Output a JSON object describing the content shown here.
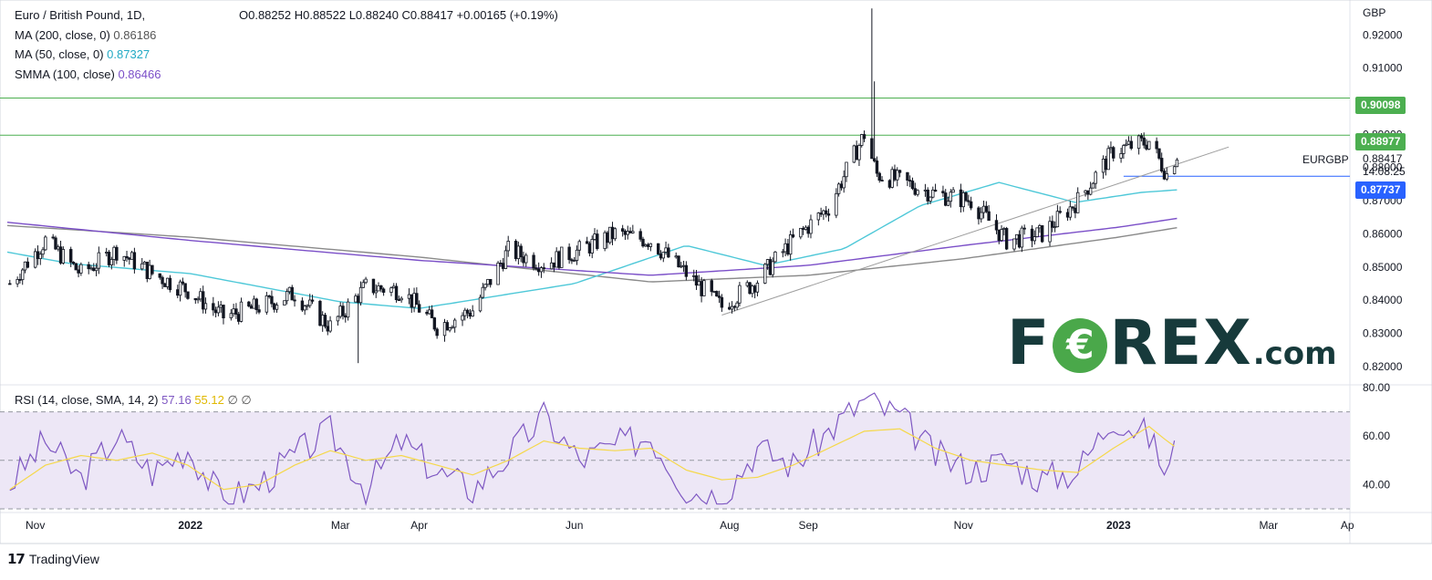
{
  "legend": {
    "symbol": "Euro / British Pound, 1D,",
    "ohlc": "O0.88252  H0.88522  L0.88240  C0.88417  +0.00165 (+0.19%)",
    "ma200_label": "MA (200, close, 0)",
    "ma200_value": "0.86186",
    "ma50_label": "MA (50, close, 0)",
    "ma50_value": "0.87327",
    "smma_label": "SMMA (100, close)",
    "smma_value": "0.86466"
  },
  "rsi_legend": {
    "label": "RSI (14, close, SMA, 14, 2)",
    "rsi_value": "57.16",
    "sma_value": "55.12",
    "extra": "∅  ∅"
  },
  "price_labels": {
    "resistance_upper": "0.90098",
    "resistance_lower": "0.88977",
    "support": "0.87737",
    "symbol_tag": "EURGBP",
    "last": "0.88417",
    "countdown": "14:08:25"
  },
  "brand": {
    "left": "F",
    "o": "€",
    "right": "REX",
    "com": ".com"
  },
  "footer": {
    "name": "TradingView"
  },
  "colors": {
    "up": "#ffffff",
    "down": "#131722",
    "ma200": "#8a8a8a",
    "ma50": "#4ec8d8",
    "smma": "#7b4fc8",
    "rsi": "#7e57c2",
    "rsi_sma": "#f5d84a",
    "hline_green": "#4caf50",
    "hline_blue": "#2962ff",
    "tag_green": "#4caf50",
    "tag_blue": "#2962ff",
    "rsi_band": "#ede7f6"
  },
  "chart_data": [
    {
      "type": "candlestick",
      "title": "Euro / British Pound, 1D",
      "ylabel": "GBP",
      "ylim": [
        0.815,
        0.93
      ],
      "y_ticks": [
        "0.92000",
        "0.91000",
        "0.90000",
        "0.89000",
        "0.88000",
        "0.87000",
        "0.86000",
        "0.85000",
        "0.84000",
        "0.83000",
        "0.82000"
      ],
      "x_tick_labels": [
        "Nov",
        "2022",
        "Mar",
        "Apr",
        "Jun",
        "Aug",
        "Sep",
        "Nov",
        "2023",
        "Mar",
        "Ap"
      ],
      "x_tick_dates": [
        "2021-11-01",
        "2022-01-01",
        "2022-03-01",
        "2022-04-01",
        "2022-06-01",
        "2022-08-01",
        "2022-09-01",
        "2022-11-01",
        "2023-01-01",
        "2023-03-01",
        "2023-04-01"
      ],
      "x_range": [
        "2021-10-21",
        "2023-04-02"
      ],
      "horizontal_lines": [
        {
          "value": 0.90098,
          "color": "green"
        },
        {
          "value": 0.88977,
          "color": "green"
        },
        {
          "value": 0.87737,
          "color": "blue",
          "from": "2023-01-03"
        }
      ],
      "trendlines": [
        {
          "from": [
            "2022-07-29",
            0.8355
          ],
          "to": [
            "2023-01-30",
            0.8842
          ],
          "color": "grey"
        }
      ],
      "series": [
        {
          "name": "Close",
          "dates": [
            "2021-10-22",
            "2021-11-05",
            "2021-11-19",
            "2021-12-03",
            "2021-12-17",
            "2021-12-31",
            "2022-01-14",
            "2022-01-28",
            "2022-02-11",
            "2022-02-25",
            "2022-03-11",
            "2022-03-25",
            "2022-04-08",
            "2022-04-22",
            "2022-05-06",
            "2022-05-20",
            "2022-06-03",
            "2022-06-17",
            "2022-07-01",
            "2022-07-15",
            "2022-07-29",
            "2022-08-12",
            "2022-08-26",
            "2022-09-09",
            "2022-09-23",
            "2022-09-28",
            "2022-10-07",
            "2022-10-21",
            "2022-11-04",
            "2022-11-18",
            "2022-12-02",
            "2022-12-16",
            "2022-12-30",
            "2023-01-13",
            "2023-01-20",
            "2023-01-24"
          ],
          "values": [
            0.845,
            0.858,
            0.848,
            0.855,
            0.848,
            0.843,
            0.835,
            0.838,
            0.842,
            0.832,
            0.844,
            0.843,
            0.832,
            0.837,
            0.855,
            0.851,
            0.855,
            0.86,
            0.858,
            0.848,
            0.838,
            0.846,
            0.858,
            0.868,
            0.89,
            0.878,
            0.876,
            0.872,
            0.87,
            0.858,
            0.86,
            0.87,
            0.885,
            0.888,
            0.878,
            0.88417
          ]
        },
        {
          "name": "MA (200, close, 0)",
          "dates": [
            "2021-10-21",
            "2022-01-01",
            "2022-04-01",
            "2022-07-01",
            "2022-09-01",
            "2022-11-01",
            "2023-01-01",
            "2023-01-24"
          ],
          "values": [
            0.8625,
            0.859,
            0.853,
            0.8455,
            0.8475,
            0.8525,
            0.859,
            0.86186
          ]
        },
        {
          "name": "MA (50, close, 0)",
          "dates": [
            "2021-10-21",
            "2021-11-15",
            "2022-01-01",
            "2022-03-01",
            "2022-04-01",
            "2022-06-01",
            "2022-07-15",
            "2022-08-15",
            "2022-09-15",
            "2022-10-15",
            "2022-11-15",
            "2022-12-15",
            "2023-01-10",
            "2023-01-24"
          ],
          "values": [
            0.8545,
            0.851,
            0.848,
            0.8395,
            0.8375,
            0.845,
            0.8565,
            0.8505,
            0.8555,
            0.8685,
            0.8755,
            0.8695,
            0.8725,
            0.87327
          ]
        },
        {
          "name": "SMMA (100, close)",
          "dates": [
            "2021-10-21",
            "2022-01-01",
            "2022-04-01",
            "2022-07-01",
            "2022-09-01",
            "2022-11-01",
            "2023-01-01",
            "2023-01-24"
          ],
          "values": [
            0.8635,
            0.858,
            0.852,
            0.8475,
            0.8505,
            0.8565,
            0.862,
            0.86466
          ]
        }
      ]
    },
    {
      "type": "line",
      "title": "RSI (14, close, SMA, 14, 2)",
      "ylim": [
        30,
        80
      ],
      "y_ticks": [
        "80.00",
        "60.00",
        "40.00"
      ],
      "bands": [
        70,
        50,
        30
      ],
      "series": [
        {
          "name": "RSI",
          "dates": [
            "2021-10-22",
            "2021-11-05",
            "2021-11-19",
            "2021-12-03",
            "2021-12-17",
            "2021-12-31",
            "2022-01-14",
            "2022-01-28",
            "2022-02-11",
            "2022-02-25",
            "2022-03-11",
            "2022-03-25",
            "2022-04-08",
            "2022-04-22",
            "2022-05-06",
            "2022-05-20",
            "2022-06-03",
            "2022-06-17",
            "2022-07-01",
            "2022-07-15",
            "2022-07-29",
            "2022-08-12",
            "2022-08-26",
            "2022-09-09",
            "2022-09-23",
            "2022-10-07",
            "2022-10-21",
            "2022-11-04",
            "2022-11-18",
            "2022-12-02",
            "2022-12-16",
            "2022-12-30",
            "2023-01-13",
            "2023-01-20",
            "2023-01-24"
          ],
          "values": [
            40,
            58,
            42,
            60,
            45,
            55,
            33,
            40,
            52,
            62,
            38,
            58,
            45,
            38,
            52,
            68,
            50,
            56,
            60,
            38,
            35,
            55,
            48,
            62,
            75,
            68,
            52,
            46,
            50,
            42,
            46,
            68,
            60,
            44,
            57.16
          ]
        },
        {
          "name": "SMA",
          "dates": [
            "2021-10-22",
            "2021-11-05",
            "2021-11-19",
            "2021-12-03",
            "2021-12-17",
            "2021-12-31",
            "2022-01-14",
            "2022-01-28",
            "2022-02-11",
            "2022-02-25",
            "2022-03-11",
            "2022-03-25",
            "2022-04-08",
            "2022-04-22",
            "2022-05-06",
            "2022-05-20",
            "2022-06-03",
            "2022-06-17",
            "2022-07-01",
            "2022-07-15",
            "2022-07-29",
            "2022-08-12",
            "2022-08-26",
            "2022-09-09",
            "2022-09-23",
            "2022-10-07",
            "2022-10-21",
            "2022-11-04",
            "2022-11-18",
            "2022-12-02",
            "2022-12-16",
            "2022-12-30",
            "2023-01-13",
            "2023-01-20",
            "2023-01-24"
          ],
          "values": [
            38,
            48,
            52,
            50,
            53,
            48,
            38,
            40,
            48,
            54,
            50,
            52,
            48,
            44,
            50,
            58,
            55,
            54,
            55,
            46,
            42,
            43,
            48,
            55,
            62,
            63,
            55,
            50,
            48,
            46,
            45,
            55,
            64,
            58,
            55.12
          ]
        }
      ]
    }
  ]
}
